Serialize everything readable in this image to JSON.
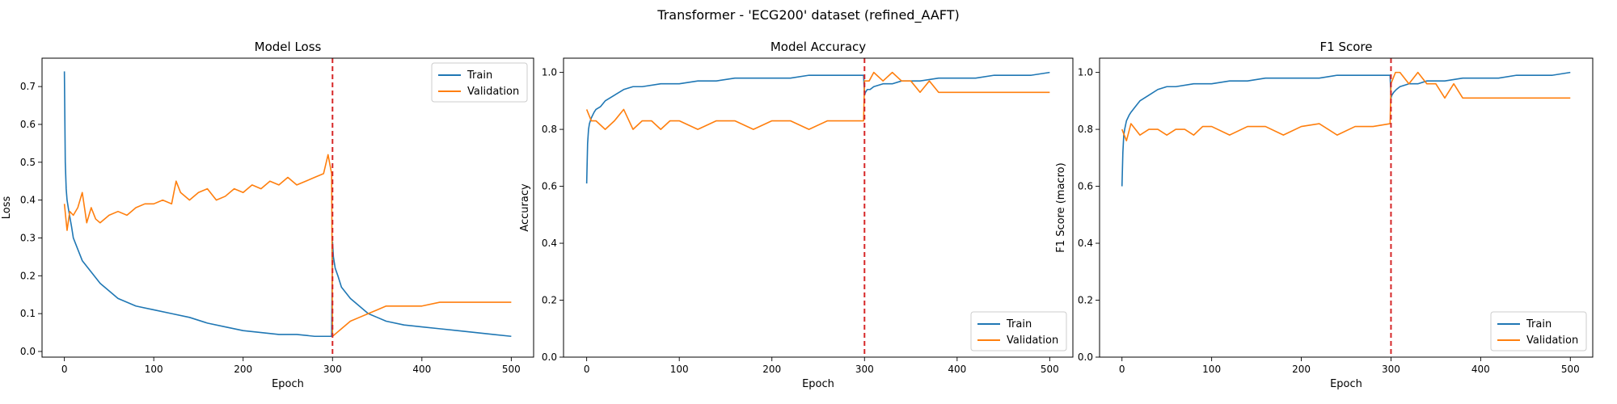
{
  "suptitle": "Transformer - 'ECG200' dataset (refined_AAFT)",
  "colors": {
    "train": "#1f77b4",
    "validation": "#ff7f0e",
    "marker": "#d62728"
  },
  "chart_data": [
    {
      "type": "line",
      "title": "Model Loss",
      "xlabel": "Epoch",
      "ylabel": "Loss",
      "xlim": [
        -25,
        525
      ],
      "ylim": [
        -0.015,
        0.775
      ],
      "xticks": [
        "0",
        "100",
        "200",
        "300",
        "400",
        "500"
      ],
      "yticks": [
        "0.0",
        "0.1",
        "0.2",
        "0.3",
        "0.4",
        "0.5",
        "0.6",
        "0.7"
      ],
      "legend": {
        "position": "top-right",
        "entries": [
          "Train",
          "Validation"
        ]
      },
      "vline_x": 300,
      "series": [
        {
          "name": "Train",
          "x": [
            0,
            1,
            2,
            3,
            5,
            8,
            10,
            15,
            20,
            30,
            40,
            50,
            60,
            80,
            100,
            120,
            140,
            160,
            180,
            200,
            220,
            240,
            260,
            280,
            299,
            300,
            301,
            303,
            306,
            310,
            320,
            330,
            340,
            350,
            360,
            380,
            400,
            420,
            440,
            460,
            480,
            500
          ],
          "y": [
            0.74,
            0.5,
            0.43,
            0.4,
            0.37,
            0.33,
            0.3,
            0.27,
            0.24,
            0.21,
            0.18,
            0.16,
            0.14,
            0.12,
            0.11,
            0.1,
            0.09,
            0.075,
            0.065,
            0.055,
            0.05,
            0.045,
            0.045,
            0.04,
            0.04,
            0.29,
            0.25,
            0.22,
            0.2,
            0.17,
            0.14,
            0.12,
            0.1,
            0.09,
            0.08,
            0.07,
            0.065,
            0.06,
            0.055,
            0.05,
            0.045,
            0.04
          ]
        },
        {
          "name": "Validation",
          "x": [
            0,
            3,
            6,
            10,
            15,
            20,
            25,
            30,
            35,
            40,
            50,
            60,
            70,
            80,
            90,
            100,
            110,
            120,
            125,
            130,
            140,
            150,
            160,
            170,
            180,
            190,
            200,
            210,
            220,
            230,
            240,
            250,
            260,
            270,
            280,
            290,
            295,
            299,
            300,
            305,
            310,
            320,
            330,
            340,
            350,
            360,
            370,
            380,
            390,
            400,
            420,
            440,
            460,
            480,
            500
          ],
          "y": [
            0.39,
            0.32,
            0.37,
            0.36,
            0.38,
            0.42,
            0.34,
            0.38,
            0.35,
            0.34,
            0.36,
            0.37,
            0.36,
            0.38,
            0.39,
            0.39,
            0.4,
            0.39,
            0.45,
            0.42,
            0.4,
            0.42,
            0.43,
            0.4,
            0.41,
            0.43,
            0.42,
            0.44,
            0.43,
            0.45,
            0.44,
            0.46,
            0.44,
            0.45,
            0.46,
            0.47,
            0.52,
            0.47,
            0.04,
            0.05,
            0.06,
            0.08,
            0.09,
            0.1,
            0.11,
            0.12,
            0.12,
            0.12,
            0.12,
            0.12,
            0.13,
            0.13,
            0.13,
            0.13,
            0.13
          ]
        }
      ]
    },
    {
      "type": "line",
      "title": "Model Accuracy",
      "xlabel": "Epoch",
      "ylabel": "Accuracy",
      "xlim": [
        -25,
        525
      ],
      "ylim": [
        0,
        1.05
      ],
      "xticks": [
        "0",
        "100",
        "200",
        "300",
        "400",
        "500"
      ],
      "yticks": [
        "0.0",
        "0.2",
        "0.4",
        "0.6",
        "0.8",
        "1.0"
      ],
      "legend": {
        "position": "bottom-right",
        "entries": [
          "Train",
          "Validation"
        ]
      },
      "vline_x": 300,
      "series": [
        {
          "name": "Train",
          "x": [
            0,
            1,
            2,
            3,
            5,
            8,
            10,
            15,
            20,
            30,
            40,
            50,
            60,
            80,
            100,
            120,
            140,
            160,
            180,
            200,
            220,
            240,
            260,
            280,
            299,
            300,
            301,
            303,
            306,
            310,
            320,
            330,
            340,
            350,
            360,
            380,
            400,
            420,
            440,
            460,
            480,
            500
          ],
          "y": [
            0.61,
            0.75,
            0.8,
            0.82,
            0.84,
            0.86,
            0.87,
            0.88,
            0.9,
            0.92,
            0.94,
            0.95,
            0.95,
            0.96,
            0.96,
            0.97,
            0.97,
            0.98,
            0.98,
            0.98,
            0.98,
            0.99,
            0.99,
            0.99,
            0.99,
            0.92,
            0.93,
            0.94,
            0.94,
            0.95,
            0.96,
            0.96,
            0.97,
            0.97,
            0.97,
            0.98,
            0.98,
            0.98,
            0.99,
            0.99,
            0.99,
            1.0
          ]
        },
        {
          "name": "Validation",
          "x": [
            0,
            5,
            10,
            20,
            30,
            40,
            50,
            60,
            70,
            80,
            90,
            100,
            120,
            140,
            160,
            180,
            200,
            220,
            240,
            260,
            280,
            299,
            300,
            305,
            310,
            320,
            330,
            340,
            350,
            360,
            370,
            380,
            390,
            400,
            420,
            440,
            460,
            480,
            500
          ],
          "y": [
            0.87,
            0.83,
            0.83,
            0.8,
            0.83,
            0.87,
            0.8,
            0.83,
            0.83,
            0.8,
            0.83,
            0.83,
            0.8,
            0.83,
            0.83,
            0.8,
            0.83,
            0.83,
            0.8,
            0.83,
            0.83,
            0.83,
            0.97,
            0.97,
            1.0,
            0.97,
            1.0,
            0.97,
            0.97,
            0.93,
            0.97,
            0.93,
            0.93,
            0.93,
            0.93,
            0.93,
            0.93,
            0.93,
            0.93
          ]
        }
      ]
    },
    {
      "type": "line",
      "title": "F1 Score",
      "xlabel": "Epoch",
      "ylabel": "F1 Score (macro)",
      "xlim": [
        -25,
        525
      ],
      "ylim": [
        0,
        1.05
      ],
      "xticks": [
        "0",
        "100",
        "200",
        "300",
        "400",
        "500"
      ],
      "yticks": [
        "0.0",
        "0.2",
        "0.4",
        "0.6",
        "0.8",
        "1.0"
      ],
      "legend": {
        "position": "bottom-right",
        "entries": [
          "Train",
          "Validation"
        ]
      },
      "vline_x": 300,
      "series": [
        {
          "name": "Train",
          "x": [
            0,
            1,
            2,
            3,
            5,
            8,
            10,
            15,
            20,
            30,
            40,
            50,
            60,
            80,
            100,
            120,
            140,
            160,
            180,
            200,
            220,
            240,
            260,
            280,
            299,
            300,
            301,
            303,
            306,
            310,
            320,
            330,
            340,
            350,
            360,
            380,
            400,
            420,
            440,
            460,
            480,
            500
          ],
          "y": [
            0.6,
            0.72,
            0.78,
            0.8,
            0.83,
            0.85,
            0.86,
            0.88,
            0.9,
            0.92,
            0.94,
            0.95,
            0.95,
            0.96,
            0.96,
            0.97,
            0.97,
            0.98,
            0.98,
            0.98,
            0.98,
            0.99,
            0.99,
            0.99,
            0.99,
            0.91,
            0.92,
            0.93,
            0.94,
            0.95,
            0.96,
            0.96,
            0.97,
            0.97,
            0.97,
            0.98,
            0.98,
            0.98,
            0.99,
            0.99,
            0.99,
            1.0
          ]
        },
        {
          "name": "Validation",
          "x": [
            0,
            5,
            10,
            20,
            30,
            40,
            50,
            60,
            70,
            80,
            90,
            100,
            120,
            140,
            160,
            180,
            200,
            220,
            240,
            260,
            280,
            299,
            300,
            305,
            310,
            320,
            330,
            340,
            350,
            360,
            370,
            380,
            390,
            400,
            420,
            440,
            460,
            480,
            500
          ],
          "y": [
            0.8,
            0.76,
            0.82,
            0.78,
            0.8,
            0.8,
            0.78,
            0.8,
            0.8,
            0.78,
            0.81,
            0.81,
            0.78,
            0.81,
            0.81,
            0.78,
            0.81,
            0.82,
            0.78,
            0.81,
            0.81,
            0.82,
            0.96,
            1.0,
            1.0,
            0.96,
            1.0,
            0.96,
            0.96,
            0.91,
            0.96,
            0.91,
            0.91,
            0.91,
            0.91,
            0.91,
            0.91,
            0.91,
            0.91
          ]
        }
      ]
    }
  ]
}
